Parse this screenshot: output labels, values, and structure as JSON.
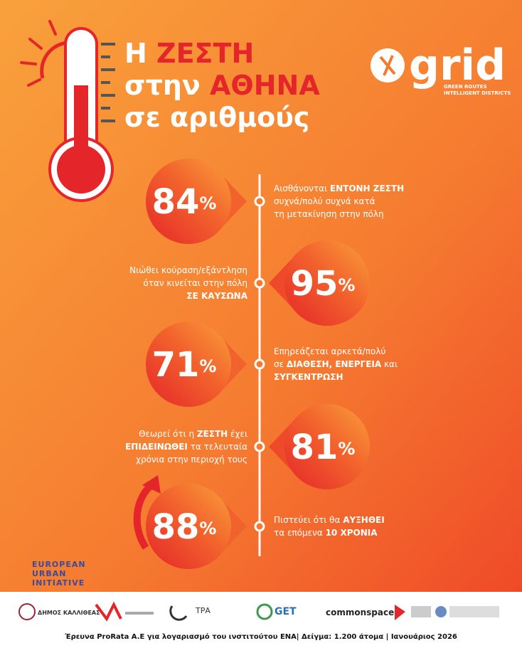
{
  "title": {
    "lines": [
      [
        {
          "text": "Η ",
          "highlight": false
        },
        {
          "text": "ΖΕΣΤΗ",
          "highlight": true
        }
      ],
      [
        {
          "text": "στην ",
          "highlight": false
        },
        {
          "text": "ΑΘΗΝΑ",
          "highlight": true
        }
      ],
      [
        {
          "text": "σε αριθμούς",
          "highlight": false
        }
      ]
    ]
  },
  "logo": {
    "name": "grid",
    "tagline": [
      "GREEN ROUTES",
      "INTELLIGENT DISTRICTS"
    ]
  },
  "stats": [
    {
      "value": 84,
      "unit": "%",
      "lines": [
        [
          {
            "text": "Αισθάνονται ",
            "bold": false
          },
          {
            "text": "ΕΝΤΟΝΗ ΖΕΣΤΗ",
            "bold": true
          }
        ],
        [
          {
            "text": "συχνά/πολύ συχνά κατά",
            "bold": false
          }
        ],
        [
          {
            "text": "τη μετακίνηση στην πόλη",
            "bold": false
          }
        ]
      ]
    },
    {
      "value": 95,
      "unit": "%",
      "lines": [
        [
          {
            "text": "Νιώθει κούραση/εξάντληση",
            "bold": false
          }
        ],
        [
          {
            "text": "όταν κινείται στην πόλη",
            "bold": false
          }
        ],
        [
          {
            "text": "ΣΕ ΚΑΥΣΩΝΑ",
            "bold": true
          }
        ]
      ]
    },
    {
      "value": 71,
      "unit": "%",
      "lines": [
        [
          {
            "text": "Επηρεάζεται αρκετά/πολύ",
            "bold": false
          }
        ],
        [
          {
            "text": "σε ",
            "bold": false
          },
          {
            "text": "ΔΙΑΘΕΣΗ, ΕΝΕΡΓΕΙΑ",
            "bold": true
          },
          {
            "text": " και",
            "bold": false
          }
        ],
        [
          {
            "text": "ΣΥΓΚΕΝΤΡΩΣΗ",
            "bold": true
          }
        ]
      ]
    },
    {
      "value": 81,
      "unit": "%",
      "lines": [
        [
          {
            "text": "Θεωρεί ότι η ",
            "bold": false
          },
          {
            "text": "ΖΕΣΤΗ",
            "bold": true
          },
          {
            "text": " έχει",
            "bold": false
          }
        ],
        [
          {
            "text": "ΕΠΙΔΕΙΝΩΘΕΙ",
            "bold": true
          },
          {
            "text": " τα τελευταία",
            "bold": false
          }
        ],
        [
          {
            "text": "χρόνια στην περιοχή τους",
            "bold": false
          }
        ]
      ]
    },
    {
      "value": 88,
      "unit": "%",
      "lines": [
        [
          {
            "text": "Πιστεύει ότι θα ",
            "bold": false
          },
          {
            "text": "ΑΥΞΗΘΕΙ",
            "bold": true
          }
        ],
        [
          {
            "text": "τα επόμενα ",
            "bold": false
          },
          {
            "text": "10 ΧΡΟΝΙΑ",
            "bold": true
          }
        ]
      ]
    }
  ],
  "initiative": [
    "EUROPEAN",
    "URBAN",
    "INITIATIVE"
  ],
  "partners": [
    "ΔΗΜΟΣ ΚΑΛΛΙΘΕΑΣ",
    "ΤΡΑ",
    "GET",
    "commonspace"
  ],
  "footer": "Έρευνα ProRata A.E για λογαριασμό του ινστιτούτου ΕΝΑ| Δείγμα: 1.200 άτομα | Ιανουάριος 2026"
}
